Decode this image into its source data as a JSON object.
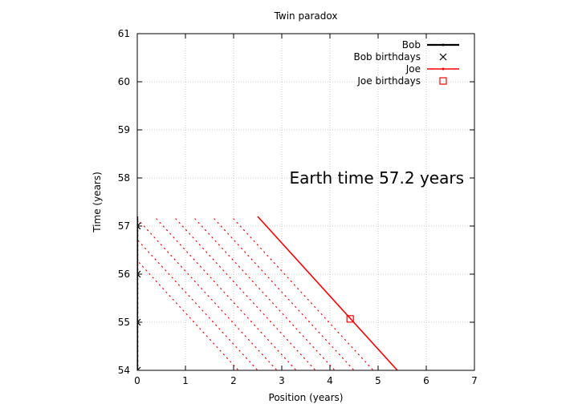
{
  "chart_data": {
    "type": "line",
    "title": "Twin paradox",
    "xlabel": "Position (years)",
    "ylabel": "Time (years)",
    "xlim": [
      0,
      7
    ],
    "ylim": [
      54,
      61
    ],
    "xticks": [
      0,
      1,
      2,
      3,
      4,
      5,
      6,
      7
    ],
    "yticks": [
      54,
      55,
      56,
      57,
      58,
      59,
      60,
      61
    ],
    "grid": true,
    "legend_position": "top-right",
    "annotation": "Earth time 57.2 years",
    "colors": {
      "bob": "#000000",
      "joe": "#ff0000",
      "grid": "#c0c0c0"
    },
    "series": [
      {
        "name": "Bob",
        "kind": "line",
        "points": [
          [
            0,
            54
          ],
          [
            0,
            57.2
          ]
        ]
      },
      {
        "name": "Bob birthdays",
        "kind": "points",
        "marker": "cross",
        "points": [
          [
            0,
            54
          ],
          [
            0,
            55
          ],
          [
            0,
            56
          ],
          [
            0,
            57
          ]
        ]
      },
      {
        "name": "Joe",
        "kind": "line",
        "points": [
          [
            2.5,
            57.2
          ],
          [
            5.4,
            54
          ]
        ]
      },
      {
        "name": "Joe birthdays",
        "kind": "points",
        "marker": "open-square",
        "points": [
          [
            4.42,
            55.07
          ]
        ]
      }
    ],
    "light_signals": {
      "color": "#ff0000",
      "slope_years_per_year": -0.48,
      "lines": [
        [
          [
            -0.8,
            57.15
          ],
          [
            2.1,
            54
          ]
        ],
        [
          [
            -0.4,
            57.15
          ],
          [
            2.5,
            54
          ]
        ],
        [
          [
            0.0,
            57.15
          ],
          [
            2.9,
            54
          ]
        ],
        [
          [
            0.4,
            57.15
          ],
          [
            3.3,
            54
          ]
        ],
        [
          [
            0.8,
            57.15
          ],
          [
            3.7,
            54
          ]
        ],
        [
          [
            1.2,
            57.15
          ],
          [
            4.1,
            54
          ]
        ],
        [
          [
            1.6,
            57.15
          ],
          [
            4.5,
            54
          ]
        ],
        [
          [
            2.0,
            57.15
          ],
          [
            4.9,
            54
          ]
        ]
      ]
    }
  }
}
